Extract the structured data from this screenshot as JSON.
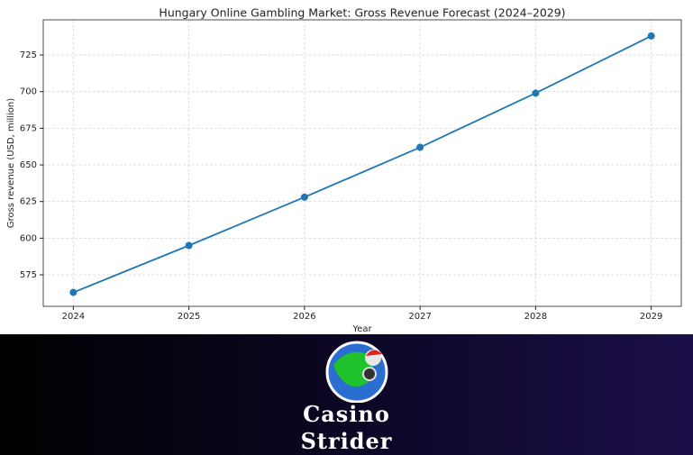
{
  "chart_data": {
    "type": "line",
    "title": "Hungary Online Gambling Market: Gross Revenue Forecast (2024–2029)",
    "x_label": "Year",
    "y_label": "Gross revenue (USD, million)",
    "x": [
      2024,
      2025,
      2026,
      2027,
      2028,
      2029
    ],
    "series": [
      {
        "name": "Gross revenue",
        "color": "#1f77b4",
        "values": [
          563,
          595,
          628,
          662,
          699,
          738
        ]
      }
    ],
    "xlim": [
      2023.74,
      2029.26
    ],
    "xticks": [
      2024,
      2025,
      2026,
      2027,
      2028,
      2029
    ],
    "ylim": [
      553.5,
      749
    ],
    "yticks": [
      575,
      600,
      625,
      650,
      675,
      700,
      725
    ],
    "grid": true
  },
  "banner": {
    "line1": "Casino",
    "line2": "Strider"
  }
}
